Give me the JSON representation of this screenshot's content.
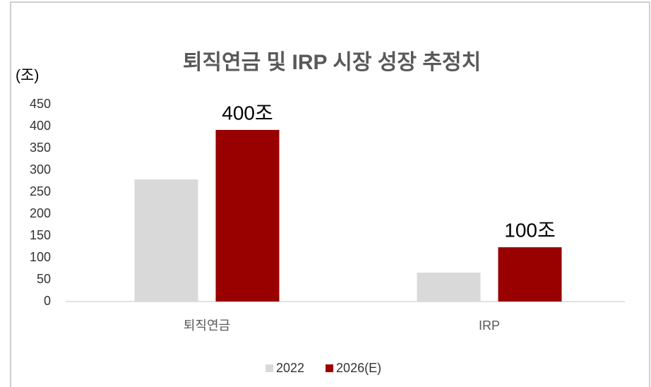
{
  "chart_data": {
    "type": "bar",
    "title": "퇴직연금 및 IRP 시장 성장 추정치",
    "y_axis_label": "(조)",
    "categories": [
      "퇴직연금",
      "IRP"
    ],
    "series": [
      {
        "name": "2022",
        "color": "#d9d9d9",
        "values": [
          279,
          66
        ]
      },
      {
        "name": "2026(E)",
        "color": "#990000",
        "values": [
          392,
          124
        ]
      }
    ],
    "annotations": [
      "400조",
      "100조"
    ],
    "ylim": [
      0,
      450
    ],
    "yticks": [
      0,
      50,
      100,
      150,
      200,
      250,
      300,
      350,
      400,
      450
    ],
    "legend": "bottom"
  }
}
